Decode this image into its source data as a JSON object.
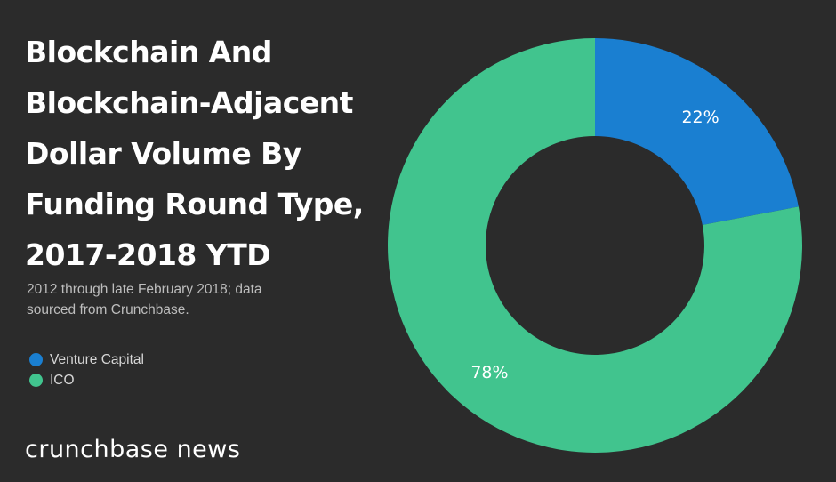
{
  "chart_data": {
    "type": "pie",
    "title_lines": [
      "Blockchain And",
      "Blockchain-Adjacent",
      "Dollar Volume By",
      "Funding Round Type,",
      "2017-2018 YTD"
    ],
    "subtitle_lines": [
      "2012 through late February 2018; data",
      "sourced from Crunchbase."
    ],
    "slices": [
      {
        "name": "Venture Capital",
        "value": 22,
        "label": "22%",
        "color": "#1a7fd1"
      },
      {
        "name": "ICO",
        "value": 78,
        "label": "78%",
        "color": "#41c48e"
      }
    ],
    "legend_position": "left"
  },
  "brand": "crunchbase news"
}
